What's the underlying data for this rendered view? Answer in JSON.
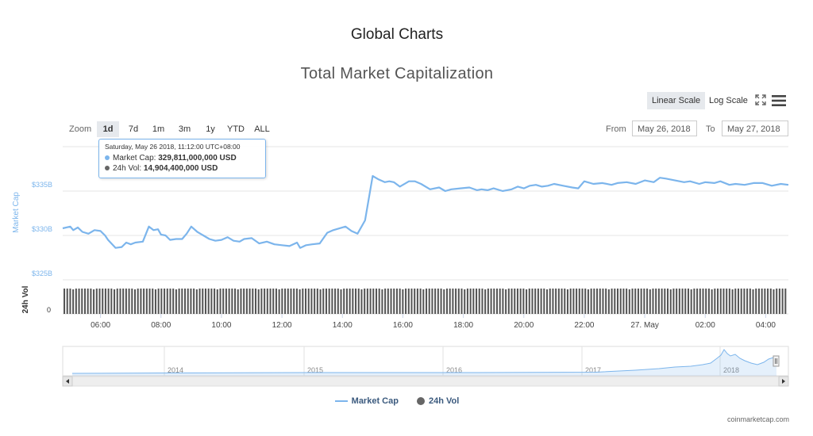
{
  "page": {
    "title": "Global Charts"
  },
  "controls": {
    "linear_scale": "Linear Scale",
    "log_scale": "Log Scale",
    "zoom_label": "Zoom",
    "zoom_options": [
      "1d",
      "7d",
      "1m",
      "3m",
      "1y",
      "YTD",
      "ALL"
    ],
    "zoom_selected": "1d",
    "from_label": "From",
    "from_value": "May 26, 2018",
    "to_label": "To",
    "to_value": "May 27, 2018"
  },
  "tooltip": {
    "title": "Saturday, May 26 2018, 11:12:00 UTC+08:00",
    "market_cap_label": "Market Cap: ",
    "market_cap_value": "329,811,000,000 USD",
    "vol_label": "24h Vol: ",
    "vol_value": "14,904,400,000 USD",
    "market_cap_color": "#7cb5ec",
    "vol_color": "#666666"
  },
  "legend": {
    "market_cap": "Market Cap",
    "vol": "24h Vol"
  },
  "credits": "coinmarketcap.com",
  "colors": {
    "market_cap": "#7cb5ec",
    "volume": "#555555",
    "axis_label": "#7cb5ec"
  },
  "chart_data": {
    "type": "line",
    "title": "Total Market Capitalization",
    "ylabel": "Market Cap",
    "ylabel_volume": "24h Vol",
    "x_ticks": [
      "06:00",
      "08:00",
      "10:00",
      "12:00",
      "14:00",
      "16:00",
      "18:00",
      "20:00",
      "22:00",
      "27. May",
      "02:00",
      "04:00"
    ],
    "y_ticks": [
      {
        "label": "$325B",
        "value": 325
      },
      {
        "label": "$330B",
        "value": 330
      },
      {
        "label": "$335B",
        "value": 335
      }
    ],
    "volume_tick": "0",
    "ylim": [
      325,
      340
    ],
    "x_range": [
      4.75,
      28.75
    ],
    "series": [
      {
        "name": "Market Cap",
        "x": [
          4.75,
          5.0,
          5.1,
          5.25,
          5.4,
          5.6,
          5.8,
          6.0,
          6.15,
          6.25,
          6.5,
          6.7,
          6.85,
          7.0,
          7.15,
          7.4,
          7.6,
          7.75,
          7.9,
          8.0,
          8.15,
          8.3,
          8.5,
          8.7,
          8.85,
          9.0,
          9.2,
          9.4,
          9.6,
          9.8,
          10.0,
          10.2,
          10.4,
          10.6,
          10.75,
          11.0,
          11.25,
          11.5,
          11.75,
          12.0,
          12.25,
          12.5,
          12.6,
          12.8,
          13.0,
          13.25,
          13.5,
          13.7,
          14.0,
          14.1,
          14.3,
          14.5,
          14.75,
          15.0,
          15.2,
          15.4,
          15.55,
          15.7,
          15.9,
          16.2,
          16.4,
          16.6,
          16.9,
          17.2,
          17.4,
          17.6,
          17.9,
          18.2,
          18.45,
          18.6,
          18.8,
          19.0,
          19.3,
          19.6,
          19.8,
          20.0,
          20.2,
          20.4,
          20.6,
          20.8,
          21.0,
          21.3,
          21.6,
          21.8,
          22.0,
          22.3,
          22.6,
          22.9,
          23.1,
          23.4,
          23.7,
          24.0,
          24.3,
          24.5,
          24.7,
          25.0,
          25.3,
          25.5,
          25.8,
          26.0,
          26.3,
          26.5,
          26.8,
          27.0,
          27.3,
          27.6,
          27.9,
          28.2,
          28.5,
          28.75
        ],
        "values": [
          330.8,
          331.0,
          330.6,
          330.9,
          330.4,
          330.2,
          330.6,
          330.5,
          330.0,
          329.5,
          328.6,
          328.7,
          329.2,
          329.0,
          329.2,
          329.3,
          331.0,
          330.6,
          330.7,
          330.1,
          330.0,
          329.5,
          329.6,
          329.6,
          330.2,
          331.0,
          330.4,
          330.0,
          329.6,
          329.4,
          329.5,
          329.8,
          329.4,
          329.3,
          329.6,
          329.7,
          329.1,
          329.3,
          329.0,
          328.9,
          328.8,
          329.2,
          328.6,
          328.9,
          329.0,
          329.1,
          330.3,
          330.6,
          330.9,
          331.0,
          330.5,
          330.2,
          331.7,
          336.7,
          336.3,
          336.0,
          336.1,
          336.0,
          335.5,
          336.1,
          336.1,
          335.8,
          335.2,
          335.4,
          335.0,
          335.2,
          335.3,
          335.4,
          335.1,
          335.2,
          335.1,
          335.3,
          335.0,
          335.2,
          335.5,
          335.3,
          335.6,
          335.7,
          335.5,
          335.6,
          335.8,
          335.6,
          335.4,
          335.3,
          336.1,
          335.8,
          335.9,
          335.7,
          335.9,
          336.0,
          335.8,
          336.2,
          336.0,
          336.5,
          336.4,
          336.2,
          336.0,
          336.1,
          335.8,
          336.0,
          335.9,
          336.1,
          335.7,
          335.8,
          335.7,
          335.9,
          335.9,
          335.6,
          335.8,
          335.7
        ]
      },
      {
        "name": "24h Vol",
        "note_values": "volume bars near-constant ~14.9B USD"
      }
    ],
    "navigator_ticks": [
      "2014",
      "2015",
      "2016",
      "2017",
      "2018"
    ],
    "legend_position": "bottom-center",
    "grid": true
  }
}
